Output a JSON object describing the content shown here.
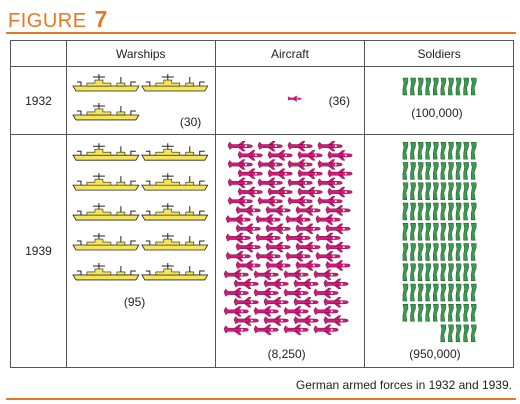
{
  "figure": {
    "label": "FIGURE",
    "number": "7"
  },
  "caption": "German armed forces in 1932 and 1939.",
  "colors": {
    "accent": "#e87722",
    "warship": "#f4e55a",
    "aircraft": "#d4187a",
    "soldier": "#3a9b4e"
  },
  "chart_data": {
    "type": "table",
    "columns": [
      "Warships",
      "Aircraft",
      "Soldiers"
    ],
    "rows": [
      {
        "year": "1932",
        "values": [
          30,
          36,
          100000
        ],
        "labels": [
          "(30)",
          "(36)",
          "(100,000)"
        ]
      },
      {
        "year": "1939",
        "values": [
          95,
          8250,
          950000
        ],
        "labels": [
          "(95)",
          "(8,250)",
          "(950,000)"
        ]
      }
    ]
  }
}
